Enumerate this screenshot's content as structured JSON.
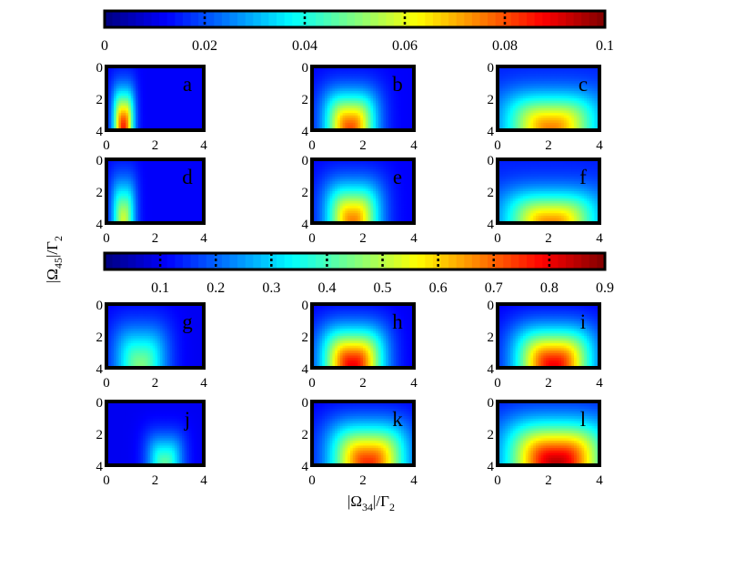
{
  "chart_data": {
    "type": "heatmap",
    "colormap": "jet",
    "axes": {
      "xlabel": "|Ω34|/Γ2",
      "ylabel": "|Ω45|/Γ2",
      "xlim": [
        0,
        4
      ],
      "ylim": [
        0,
        4
      ],
      "xticks": [
        "0",
        "2",
        "4"
      ],
      "yticks": [
        "0",
        "2",
        "4"
      ],
      "y_inverted": true
    },
    "colorbars": [
      {
        "range": [
          0,
          0.1
        ],
        "ticks": [
          "0",
          "0.02",
          "0.04",
          "0.06",
          "0.08",
          "0.1"
        ]
      },
      {
        "range": [
          0,
          0.9
        ],
        "ticks": [
          "0.1",
          "0.2",
          "0.3",
          "0.4",
          "0.5",
          "0.6",
          "0.7",
          "0.8",
          "0.9"
        ]
      }
    ],
    "panels": [
      {
        "label": "a",
        "colorbar": 0,
        "peak": 0.085,
        "cx": 0.7,
        "cy": 4.0,
        "sx": 0.42,
        "sy": 2.4,
        "base": 0.012
      },
      {
        "label": "b",
        "colorbar": 0,
        "peak": 0.08,
        "cx": 1.5,
        "cy": 4.0,
        "sx": 1.0,
        "sy": 2.3,
        "base": 0.012
      },
      {
        "label": "c",
        "colorbar": 0,
        "peak": 0.075,
        "cx": 2.1,
        "cy": 4.0,
        "sx": 1.8,
        "sy": 2.2,
        "base": 0.015
      },
      {
        "label": "d",
        "colorbar": 0,
        "peak": 0.058,
        "cx": 0.7,
        "cy": 4.0,
        "sx": 0.48,
        "sy": 2.6,
        "base": 0.012
      },
      {
        "label": "e",
        "colorbar": 0,
        "peak": 0.075,
        "cx": 1.6,
        "cy": 4.0,
        "sx": 1.05,
        "sy": 2.4,
        "base": 0.012
      },
      {
        "label": "f",
        "colorbar": 0,
        "peak": 0.075,
        "cx": 2.1,
        "cy": 4.2,
        "sx": 1.8,
        "sy": 2.1,
        "base": 0.015
      },
      {
        "label": "g",
        "colorbar": 1,
        "peak": 0.45,
        "cx": 1.4,
        "cy": 4.0,
        "sx": 1.1,
        "sy": 2.6,
        "base": 0.1
      },
      {
        "label": "h",
        "colorbar": 1,
        "peak": 0.8,
        "cx": 1.6,
        "cy": 4.0,
        "sx": 1.2,
        "sy": 2.4,
        "base": 0.1
      },
      {
        "label": "i",
        "colorbar": 1,
        "peak": 0.8,
        "cx": 2.2,
        "cy": 4.0,
        "sx": 1.5,
        "sy": 2.4,
        "base": 0.1
      },
      {
        "label": "j",
        "colorbar": 1,
        "peak": 0.42,
        "cx": 2.4,
        "cy": 4.0,
        "sx": 0.75,
        "sy": 1.9,
        "base": 0.1
      },
      {
        "label": "k",
        "colorbar": 1,
        "peak": 0.75,
        "cx": 2.2,
        "cy": 4.0,
        "sx": 1.5,
        "sy": 2.5,
        "base": 0.1
      },
      {
        "label": "l",
        "colorbar": 1,
        "peak": 0.85,
        "cx": 2.3,
        "cy": 4.0,
        "sx": 1.9,
        "sy": 2.6,
        "base": 0.12
      }
    ]
  }
}
